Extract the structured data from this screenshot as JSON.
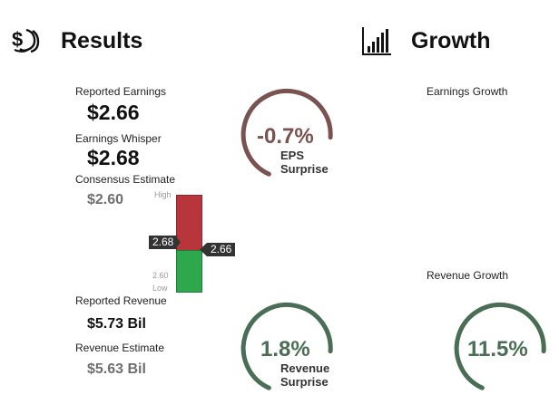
{
  "results": {
    "title": "Results",
    "icon": "money-bag-icon",
    "reported_earnings": {
      "label": "Reported Earnings",
      "value": "$2.66"
    },
    "earnings_whisper": {
      "label": "Earnings Whisper",
      "value": "$2.68"
    },
    "consensus_estimate": {
      "label": "Consensus Estimate",
      "value": "$2.60"
    },
    "range_bar": {
      "high_label": "High",
      "low_label": "Low",
      "low_value": "2.60",
      "whisper_tag": "2.68",
      "reported_tag": "2.66",
      "upper_color": "#b8363b",
      "lower_color": "#2ea84d"
    },
    "eps_gauge": {
      "value": "-0.7%",
      "caption_line1": "EPS",
      "caption_line2": "Surprise",
      "color": "#7a5350"
    },
    "reported_revenue": {
      "label": "Reported Revenue",
      "value": "$5.73 Bil"
    },
    "revenue_estimate": {
      "label": "Revenue Estimate",
      "value": "$5.63 Bil"
    },
    "revenue_gauge": {
      "value": "1.8%",
      "caption_line1": "Revenue",
      "caption_line2": "Surprise",
      "color": "#4a6e55"
    }
  },
  "growth": {
    "title": "Growth",
    "icon": "bar-chart-icon",
    "earnings_growth": {
      "label": "Earnings Growth"
    },
    "revenue_growth": {
      "label": "Revenue Growth",
      "value": "11.5%",
      "color": "#4a6e55"
    }
  }
}
